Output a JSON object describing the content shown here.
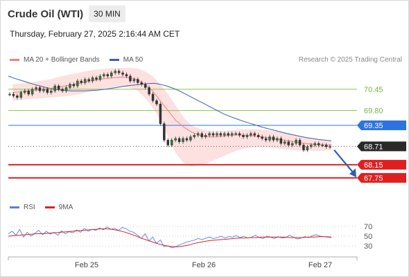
{
  "header": {
    "title": "Crude Oil (WTI)",
    "timeframe": "30 MIN",
    "datetime": "Thursday, February 27, 2025 2:16:44 AM CET"
  },
  "legend": {
    "ma20_label": "MA 20 + Bollinger Bands",
    "ma50_label": "MA 50",
    "ma20_color": "#f08080",
    "ma50_color": "#3b5ea8"
  },
  "research": "Research © 2025 Trading Central",
  "rsi_legend": {
    "rsi_label": "RSI",
    "ma9_label": "9MA",
    "rsi_color": "#5b7fd6",
    "ma9_color": "#e02020"
  },
  "chart_data": {
    "type": "line",
    "price_ylim": [
      67.2,
      71.1
    ],
    "x_ticks": [
      "Feb 25",
      "Feb 26",
      "Feb 27"
    ],
    "levels": [
      {
        "value": 70.45,
        "label": "70.45",
        "kind": "target",
        "color": "#8bc34a"
      },
      {
        "value": 69.8,
        "label": "69.80",
        "kind": "target",
        "color": "#8bc34a"
      },
      {
        "value": 69.35,
        "label": "69.35",
        "kind": "pivot",
        "color": "#2f73e0"
      },
      {
        "value": 68.71,
        "label": "68.71",
        "kind": "last",
        "color": "#333333"
      },
      {
        "value": 68.15,
        "label": "68.15",
        "kind": "support",
        "color": "#e02020"
      },
      {
        "value": 67.75,
        "label": "67.75",
        "kind": "support",
        "color": "#e02020"
      }
    ],
    "close": [
      70.3,
      70.25,
      70.2,
      70.35,
      70.4,
      70.3,
      70.45,
      70.5,
      70.4,
      70.45,
      70.35,
      70.4,
      70.55,
      70.45,
      70.4,
      70.5,
      70.6,
      70.55,
      70.7,
      70.65,
      70.75,
      70.7,
      70.8,
      70.75,
      70.85,
      70.9,
      70.85,
      70.95,
      71.0,
      70.95,
      70.9,
      70.85,
      70.7,
      70.75,
      70.65,
      70.6,
      70.5,
      70.3,
      70.1,
      70.0,
      69.4,
      68.9,
      68.75,
      68.9,
      68.95,
      68.85,
      68.95,
      68.9,
      69.0,
      69.05,
      69.1,
      69.0,
      69.05,
      69.1,
      69.05,
      69.1,
      69.05,
      69.1,
      69.05,
      69.1,
      69.1,
      69.05,
      69.0,
      69.05,
      69.1,
      69.05,
      69.0,
      68.95,
      68.9,
      69.0,
      68.9,
      68.95,
      68.8,
      68.85,
      68.75,
      68.8,
      68.9,
      68.75,
      68.6,
      68.7,
      68.75,
      68.8,
      68.75,
      68.75,
      68.7,
      68.71
    ],
    "ma50": [
      70.85,
      70.78,
      70.72,
      70.66,
      70.6,
      70.55,
      70.5,
      70.46,
      70.43,
      70.41,
      70.4,
      70.4,
      70.4,
      70.41,
      70.42,
      70.44,
      70.47,
      70.5,
      70.53,
      70.56,
      70.58,
      70.6,
      70.62,
      70.63,
      70.6,
      70.55,
      70.48,
      70.4,
      70.3,
      70.2,
      70.1,
      70.0,
      69.9,
      69.8,
      69.7,
      69.62,
      69.55,
      69.48,
      69.42,
      69.36,
      69.3,
      69.25,
      69.2,
      69.15,
      69.1,
      69.06,
      69.02,
      68.98,
      68.95,
      68.92,
      68.9,
      68.88
    ],
    "ma20": [
      70.35,
      70.37,
      70.4,
      70.42,
      70.45,
      70.48,
      70.52,
      70.56,
      70.6,
      70.65,
      70.7,
      70.74,
      70.78,
      70.8,
      70.82,
      70.8,
      70.75,
      70.6,
      70.4,
      70.1,
      69.8,
      69.5,
      69.3,
      69.15,
      69.05,
      69.0,
      69.0,
      69.02,
      69.05,
      69.06,
      69.05,
      69.03,
      69.0,
      68.97,
      68.93,
      68.9,
      68.86,
      68.82,
      68.79,
      68.77,
      68.76,
      68.75
    ],
    "bb_upper": [
      70.6,
      70.62,
      70.65,
      70.68,
      70.72,
      70.76,
      70.82,
      70.88,
      70.93,
      70.98,
      71.02,
      71.05,
      71.08,
      71.09,
      71.1,
      71.1,
      71.08,
      71.0,
      70.85,
      70.6,
      70.3,
      69.95,
      69.6,
      69.35,
      69.25,
      69.2,
      69.18,
      69.18,
      69.2,
      69.22,
      69.23,
      69.23,
      69.22,
      69.2,
      69.17,
      69.13,
      69.08,
      69.03,
      68.98,
      68.93,
      68.9,
      68.88
    ],
    "bb_lower": [
      70.1,
      70.12,
      70.15,
      70.16,
      70.18,
      70.2,
      70.22,
      70.24,
      70.27,
      70.32,
      70.38,
      70.43,
      70.48,
      70.51,
      70.54,
      70.5,
      70.42,
      70.2,
      69.9,
      69.5,
      69.0,
      68.5,
      68.2,
      68.1,
      68.15,
      68.2,
      68.3,
      68.4,
      68.5,
      68.6,
      68.65,
      68.68,
      68.68,
      68.67,
      68.65,
      68.62,
      68.6,
      68.58,
      68.57,
      68.57,
      68.58,
      68.6
    ],
    "rsi": {
      "ylim": [
        20,
        80
      ],
      "ticks": [
        70,
        50,
        30
      ],
      "rsi_values": [
        55,
        60,
        52,
        64,
        48,
        58,
        50,
        56,
        62,
        53,
        60,
        54,
        58,
        52,
        61,
        55,
        59,
        57,
        63,
        58,
        66,
        60,
        64,
        62,
        67,
        63,
        69,
        64,
        66,
        62,
        68,
        65,
        60,
        58,
        52,
        45,
        55,
        40,
        48,
        35,
        42,
        28,
        30,
        26,
        28,
        32,
        35,
        38,
        40,
        42,
        45,
        43,
        46,
        48,
        45,
        47,
        50,
        46,
        49,
        48,
        51,
        47,
        50,
        46,
        48,
        52,
        47,
        45,
        50,
        48,
        45,
        49,
        46,
        47,
        52,
        48,
        44,
        46,
        49,
        47,
        51,
        53,
        50,
        49,
        48,
        47
      ],
      "ma9_values": [
        50,
        51,
        52,
        53,
        54,
        55,
        55,
        56,
        57,
        58,
        59,
        60,
        61,
        62,
        63,
        64,
        65,
        65,
        64,
        62,
        59,
        55,
        51,
        46,
        42,
        38,
        34,
        31,
        29,
        28,
        29,
        31,
        34,
        37,
        39,
        41,
        42,
        43,
        44,
        45,
        46,
        46,
        47,
        47,
        48,
        48,
        48,
        48,
        48,
        47,
        47,
        47,
        48,
        48,
        49,
        49,
        48
      ]
    }
  }
}
